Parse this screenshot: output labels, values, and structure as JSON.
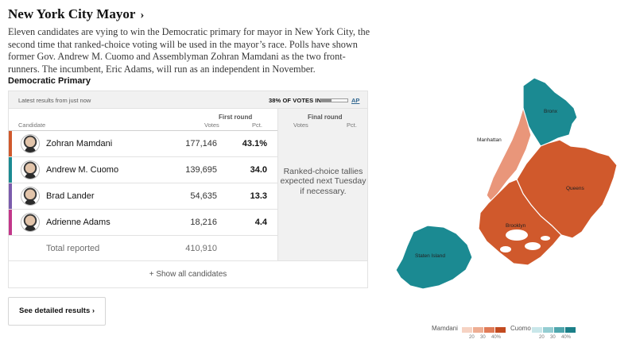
{
  "header": {
    "title": "New York City Mayor",
    "title_chevron": "›",
    "intro": "Eleven candidates are vying to win the Democratic primary for mayor in New York City, the second time that ranked-choice voting will be used in the mayor’s race. Polls have shown former Gov. Andrew M. Cuomo and Assemblyman Zohran Mamdani as the two front-runners. The incumbent, Eric Adams, will run as an independent in November."
  },
  "section_title": "Democratic Primary",
  "results": {
    "latest_text": "Latest results from just now",
    "votes_in_text": "38% OF VOTES IN",
    "votes_in_fraction": 0.38,
    "ap_text": "AP",
    "first_round_label": "First round",
    "final_round_label": "Final round",
    "col_candidate": "Candidate",
    "col_votes": "Votes",
    "col_pct": "Pct.",
    "final_col_votes": "Votes",
    "final_col_pct": "Pct.",
    "candidates": [
      {
        "name": "Zohran Mamdani",
        "votes": "177,146",
        "pct": "43.1%",
        "color": "#d0592c"
      },
      {
        "name": "Andrew M. Cuomo",
        "votes": "139,695",
        "pct": "34.0",
        "color": "#1b8a92"
      },
      {
        "name": "Brad Lander",
        "votes": "54,635",
        "pct": "13.3",
        "color": "#7b5cac"
      },
      {
        "name": "Adrienne Adams",
        "votes": "18,216",
        "pct": "4.4",
        "color": "#c2378a"
      }
    ],
    "total_label": "Total reported",
    "total_votes": "410,910",
    "tally_note": "Ranked-choice tallies expected next Tuesday if necessary.",
    "show_all": "+ Show all candidates"
  },
  "detail_button": {
    "label": "See detailed results",
    "chevron": "›"
  },
  "map": {
    "boroughs": [
      {
        "name": "Bronx",
        "color": "#1b8a92"
      },
      {
        "name": "Manhattan",
        "color": "#e9967a"
      },
      {
        "name": "Queens",
        "color": "#d0592c"
      },
      {
        "name": "Brooklyn",
        "color": "#d0592c"
      },
      {
        "name": "Staten Island",
        "color": "#1b8a92"
      }
    ]
  },
  "legend": {
    "mamdani_label": "Mamdani",
    "cuomo_label": "Cuomo",
    "mamdani_colors": [
      "#f6d3c3",
      "#eeae93",
      "#e07b57",
      "#c24a1f"
    ],
    "cuomo_colors": [
      "#c9e7ea",
      "#94cdd2",
      "#4fa6ad",
      "#1b7f88"
    ],
    "ticks": [
      "20",
      "30",
      "40%"
    ]
  }
}
